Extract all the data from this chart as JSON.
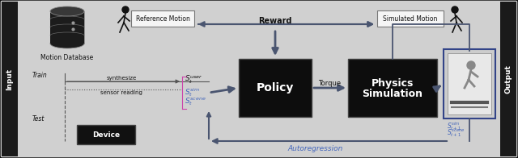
{
  "bg_color": "#d0d0d0",
  "border_color": "#111111",
  "sidebar_color": "#1a1a1a",
  "arrow_color": "#4a5570",
  "blue_text_color": "#4466bb",
  "dark_box_color": "#0d0d0d",
  "ref_motion_box": "#f0f0f0",
  "device_box_color": "#111111",
  "input_label": "Input",
  "output_label": "Output",
  "motion_db_label": "Motion Database",
  "ref_motion_label": "Reference Motion",
  "sim_motion_label": "Simulated Motion",
  "reward_label": "Reward",
  "policy_label": "Policy",
  "physics_label_1": "Physics",
  "physics_label_2": "Simulation",
  "torque_label": "Torque",
  "autoregression_label": "Autoregression",
  "train_label": "Train",
  "test_label": "Test",
  "synthesize_label": "synthesize",
  "sensor_label": "sensor reading",
  "device_label": "Device"
}
